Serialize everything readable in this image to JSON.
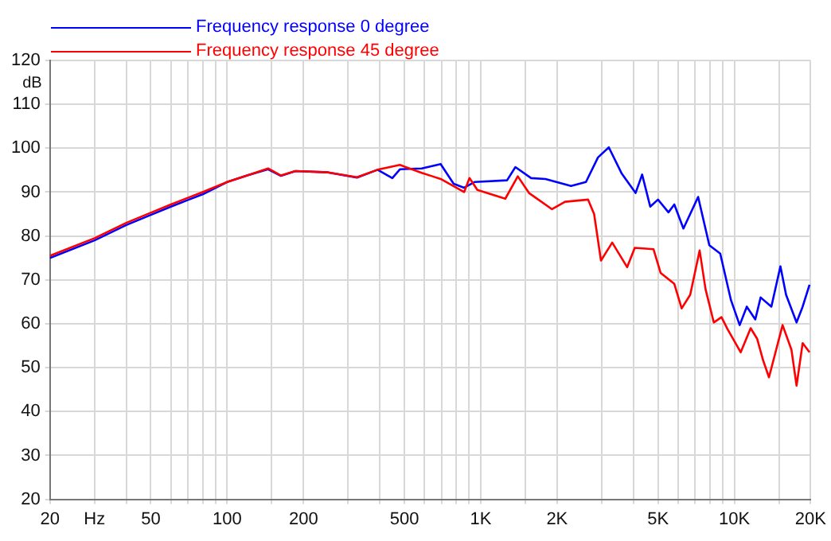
{
  "chart_data": {
    "type": "line",
    "ylabel": "dB",
    "log": "x",
    "grid": true,
    "legend": "top left",
    "marker": "none",
    "line_style": "solid",
    "xlim": [
      20,
      20000
    ],
    "ylim": [
      20,
      120
    ],
    "xticks": [
      20,
      {
        "value": 30,
        "label": "Hz"
      },
      {
        "value": 40,
        "label": null
      },
      50,
      {
        "value": 60,
        "label": null
      },
      {
        "value": 70,
        "label": null
      },
      {
        "value": 80,
        "label": null
      },
      {
        "value": 90,
        "label": null
      },
      100,
      {
        "value": 150,
        "label": null
      },
      200,
      {
        "value": 300,
        "label": null
      },
      {
        "value": 400,
        "label": null
      },
      500,
      {
        "value": 600,
        "label": null
      },
      {
        "value": 700,
        "label": null
      },
      {
        "value": 800,
        "label": null
      },
      {
        "value": 900,
        "label": null
      },
      {
        "value": 1000,
        "label": "1K"
      },
      {
        "value": 1500,
        "label": null
      },
      {
        "value": 2000,
        "label": "2K"
      },
      {
        "value": 3000,
        "label": null
      },
      {
        "value": 4000,
        "label": null
      },
      {
        "value": 5000,
        "label": "5K"
      },
      {
        "value": 6000,
        "label": null
      },
      {
        "value": 7000,
        "label": null
      },
      {
        "value": 8000,
        "label": null
      },
      {
        "value": 9000,
        "label": null
      },
      {
        "value": 10000,
        "label": "10K"
      },
      {
        "value": 15000,
        "label": null
      },
      {
        "value": 20000,
        "label": "20K"
      }
    ],
    "yticks": [
      20,
      30,
      40,
      50,
      60,
      70,
      80,
      90,
      100,
      110,
      120
    ],
    "series": [
      {
        "name": "Frequency response 0 degree",
        "color": "#0000ff",
        "x": [
          20,
          30,
          40,
          50,
          60,
          70,
          80,
          100,
          120,
          145,
          163,
          186,
          250,
          325,
          392,
          448,
          480,
          585,
          695,
          782,
          860,
          945,
          1270,
          1370,
          1580,
          1800,
          2270,
          2600,
          2900,
          3200,
          3600,
          4080,
          4330,
          4660,
          5000,
          5500,
          5800,
          6300,
          7200,
          7970,
          8800,
          9700,
          10500,
          11200,
          12100,
          12700,
          14000,
          15200,
          16000,
          17600,
          18600,
          19800
        ],
        "values": [
          75,
          79,
          82.5,
          84.8,
          86.7,
          88.2,
          89.5,
          92.3,
          93.8,
          95.2,
          93.7,
          94.8,
          94.5,
          93.3,
          95.1,
          93.2,
          95.2,
          95.4,
          96.4,
          91.9,
          91,
          92.3,
          92.7,
          95.7,
          93.2,
          93,
          91.4,
          92.3,
          97.9,
          100.2,
          94.2,
          89.8,
          94,
          86.7,
          88.3,
          85.4,
          87.2,
          81.7,
          88.9,
          77.9,
          76,
          65.4,
          59.7,
          63.9,
          61,
          66,
          63.9,
          73.1,
          66.6,
          60.3,
          63.9,
          68.9
        ]
      },
      {
        "name": "Frequency response 45 degree",
        "color": "#ff0000",
        "x": [
          20,
          30,
          40,
          50,
          60,
          70,
          80,
          100,
          120,
          145,
          163,
          186,
          250,
          325,
          392,
          480,
          585,
          645,
          695,
          860,
          903,
          970,
          1250,
          1400,
          1550,
          1910,
          2150,
          2650,
          2800,
          2980,
          3300,
          3780,
          4050,
          4800,
          5120,
          5800,
          6200,
          6700,
          7300,
          7700,
          8300,
          8900,
          9400,
          10600,
          11600,
          12300,
          13000,
          13700,
          15500,
          16800,
          17600,
          18600,
          19800
        ],
        "values": [
          75.5,
          79.5,
          83,
          85.3,
          87.2,
          88.7,
          90,
          92.3,
          93.8,
          95.4,
          93.8,
          94.8,
          94.5,
          93.4,
          95.1,
          96.2,
          94.4,
          93.6,
          93,
          90,
          93.2,
          90.5,
          88.5,
          93.6,
          89.8,
          86.1,
          87.8,
          88.3,
          85,
          74.4,
          78.5,
          72.9,
          77.3,
          77,
          71.6,
          69.1,
          63.5,
          66.6,
          76.7,
          67.9,
          60.3,
          61.5,
          58.8,
          53.5,
          59,
          56.6,
          51.6,
          47.8,
          59.7,
          54.1,
          45.9,
          55.6,
          53.5
        ]
      }
    ]
  }
}
